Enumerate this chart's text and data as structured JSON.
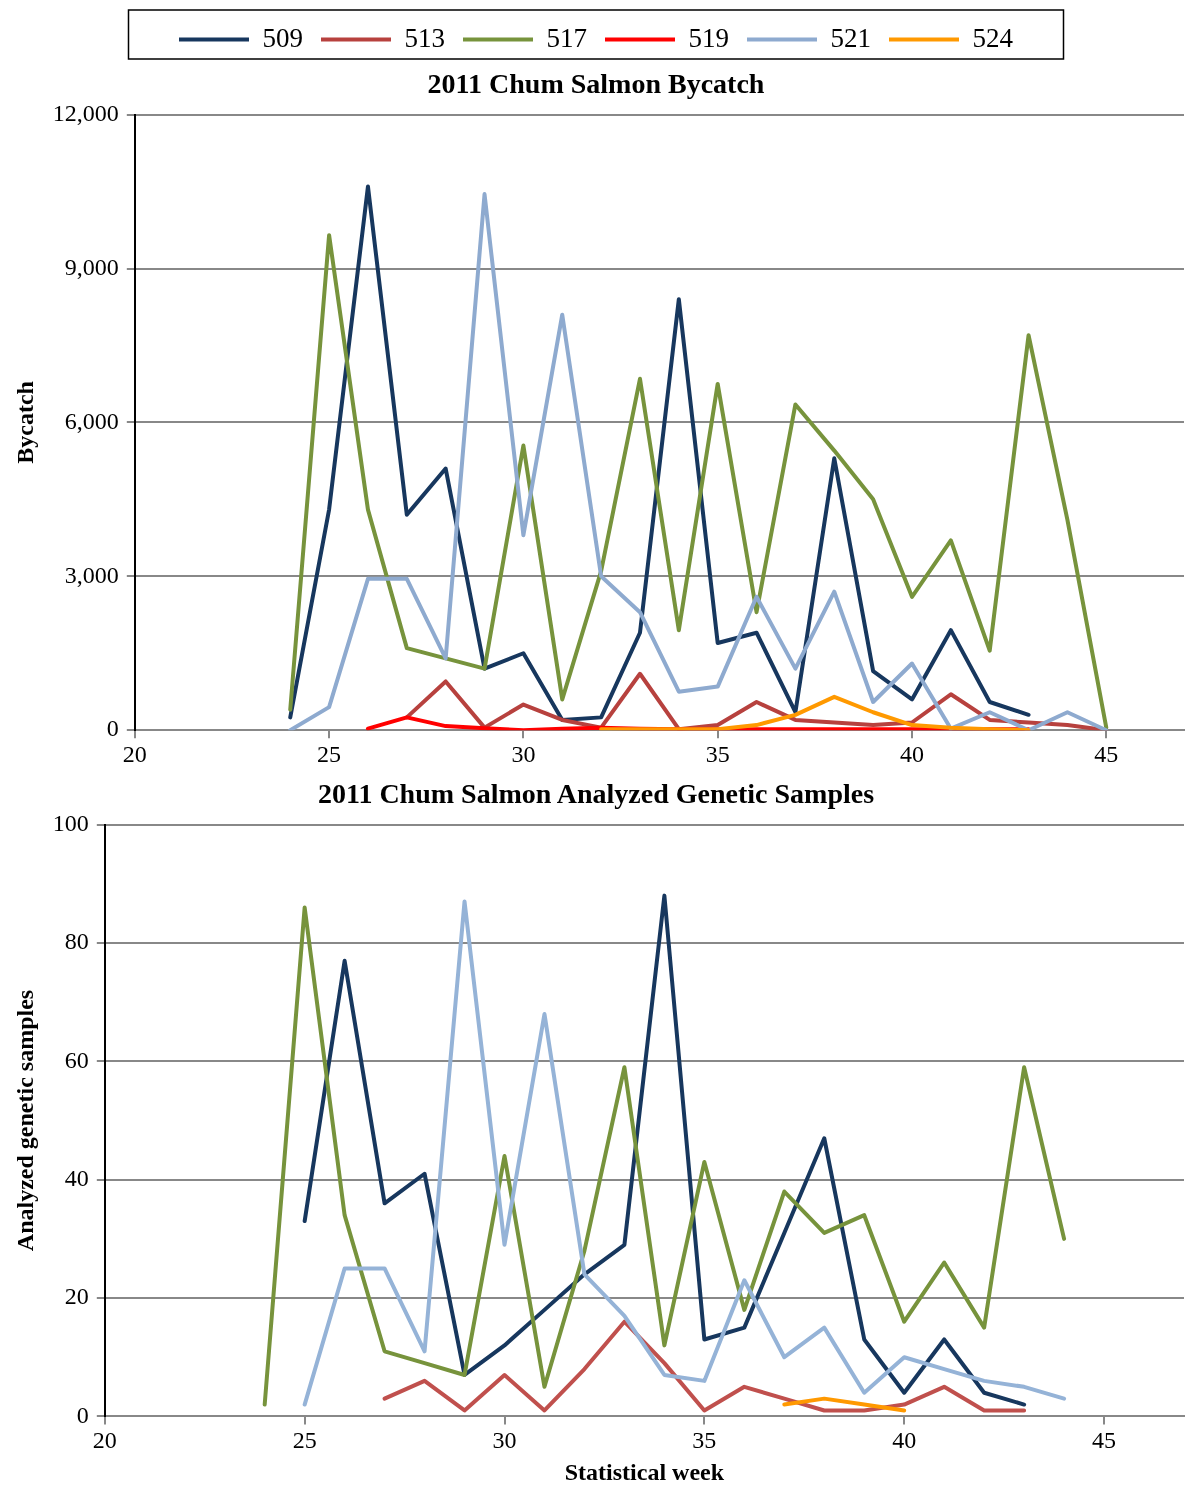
{
  "chart_data": [
    {
      "type": "line",
      "title": "2011 Chum Salmon Bycatch",
      "ylabel": "Bycatch",
      "x": [
        24,
        25,
        26,
        27,
        28,
        29,
        30,
        31,
        32,
        33,
        34,
        35,
        36,
        37,
        38,
        39,
        40,
        41,
        42,
        43,
        44,
        45
      ],
      "xlim": [
        20,
        47
      ],
      "xticks": [
        20,
        25,
        30,
        35,
        40,
        45
      ],
      "ylim": [
        0,
        12000
      ],
      "yticks": [
        0,
        {
          "value": 3000,
          "label": "3,000"
        },
        {
          "value": 6000,
          "label": "6,000"
        },
        {
          "value": 9000,
          "label": "9,000"
        },
        {
          "value": 12000,
          "label": "12,000"
        }
      ],
      "grid": "y",
      "legend": "top",
      "marker": "none",
      "line_style": "solid",
      "series": [
        {
          "name": "509",
          "color": "#17375e",
          "values": [
            250,
            4300,
            10600,
            4200,
            5100,
            1200,
            1500,
            200,
            250,
            1900,
            8400,
            1700,
            1900,
            350,
            5300,
            1150,
            600,
            1950,
            550,
            300,
            null,
            null
          ]
        },
        {
          "name": "513",
          "color": "#b7413e",
          "values": [
            null,
            null,
            null,
            250,
            950,
            50,
            500,
            200,
            50,
            1100,
            20,
            100,
            550,
            200,
            150,
            100,
            150,
            700,
            200,
            150,
            100,
            0
          ]
        },
        {
          "name": "517",
          "color": "#77933c",
          "values": [
            400,
            9650,
            4300,
            1600,
            1400,
            1200,
            5550,
            600,
            3100,
            6850,
            1950,
            6750,
            2300,
            6350,
            5450,
            4500,
            2600,
            3700,
            1550,
            7700,
            4100,
            50
          ]
        },
        {
          "name": "519",
          "color": "#ff0000",
          "values": [
            null,
            null,
            30,
            250,
            80,
            40,
            0,
            30,
            50,
            30,
            20,
            20,
            20,
            20,
            20,
            20,
            20,
            20,
            20,
            20,
            null,
            null
          ]
        },
        {
          "name": "521",
          "color": "#8eaacf",
          "values": [
            0,
            450,
            2950,
            2950,
            1400,
            10450,
            3800,
            8100,
            3000,
            2300,
            750,
            850,
            2600,
            1200,
            2700,
            550,
            1300,
            30,
            350,
            0,
            350,
            0
          ]
        },
        {
          "name": "524",
          "color": "#ff9900",
          "values": [
            null,
            null,
            null,
            null,
            null,
            null,
            null,
            null,
            20,
            20,
            20,
            20,
            100,
            300,
            650,
            350,
            100,
            50,
            20,
            0,
            null,
            null
          ]
        }
      ]
    },
    {
      "type": "line",
      "title": "2011 Chum Salmon Analyzed Genetic Samples",
      "xlabel": "Statistical week",
      "ylabel": "Analyzed genetic samples",
      "x": [
        24,
        25,
        26,
        27,
        28,
        29,
        30,
        31,
        32,
        33,
        34,
        35,
        36,
        37,
        38,
        39,
        40,
        41,
        42,
        43,
        44
      ],
      "xlim": [
        20,
        47
      ],
      "xticks": [
        20,
        25,
        30,
        35,
        40,
        45
      ],
      "ylim": [
        0,
        100
      ],
      "yticks": [
        0,
        20,
        40,
        60,
        80,
        100
      ],
      "grid": "y",
      "marker": "none",
      "line_style": "solid",
      "series": [
        {
          "color": "#17375e",
          "values": [
            null,
            33,
            77,
            36,
            41,
            7,
            12,
            18,
            24,
            29,
            88,
            13,
            15,
            31,
            47,
            13,
            4,
            13,
            4,
            2,
            null
          ]
        },
        {
          "color": "#c0504d",
          "values": [
            null,
            null,
            null,
            3,
            6,
            1,
            7,
            1,
            8,
            16,
            9,
            1,
            5,
            3,
            1,
            1,
            2,
            5,
            1,
            1,
            null
          ]
        },
        {
          "color": "#77933c",
          "values": [
            2,
            86,
            34,
            11,
            9,
            7,
            44,
            5,
            28,
            59,
            12,
            43,
            18,
            38,
            31,
            34,
            16,
            26,
            15,
            59,
            30
          ]
        },
        {
          "color": "#95b3d7",
          "values": [
            null,
            2,
            25,
            25,
            11,
            87,
            29,
            68,
            24,
            17,
            7,
            6,
            23,
            10,
            15,
            4,
            10,
            8,
            6,
            5,
            3
          ]
        },
        {
          "color": "#ff9900",
          "values": [
            null,
            null,
            null,
            null,
            null,
            null,
            null,
            null,
            null,
            null,
            null,
            null,
            null,
            2,
            3,
            2,
            1,
            null,
            null,
            null,
            null
          ]
        }
      ]
    }
  ]
}
